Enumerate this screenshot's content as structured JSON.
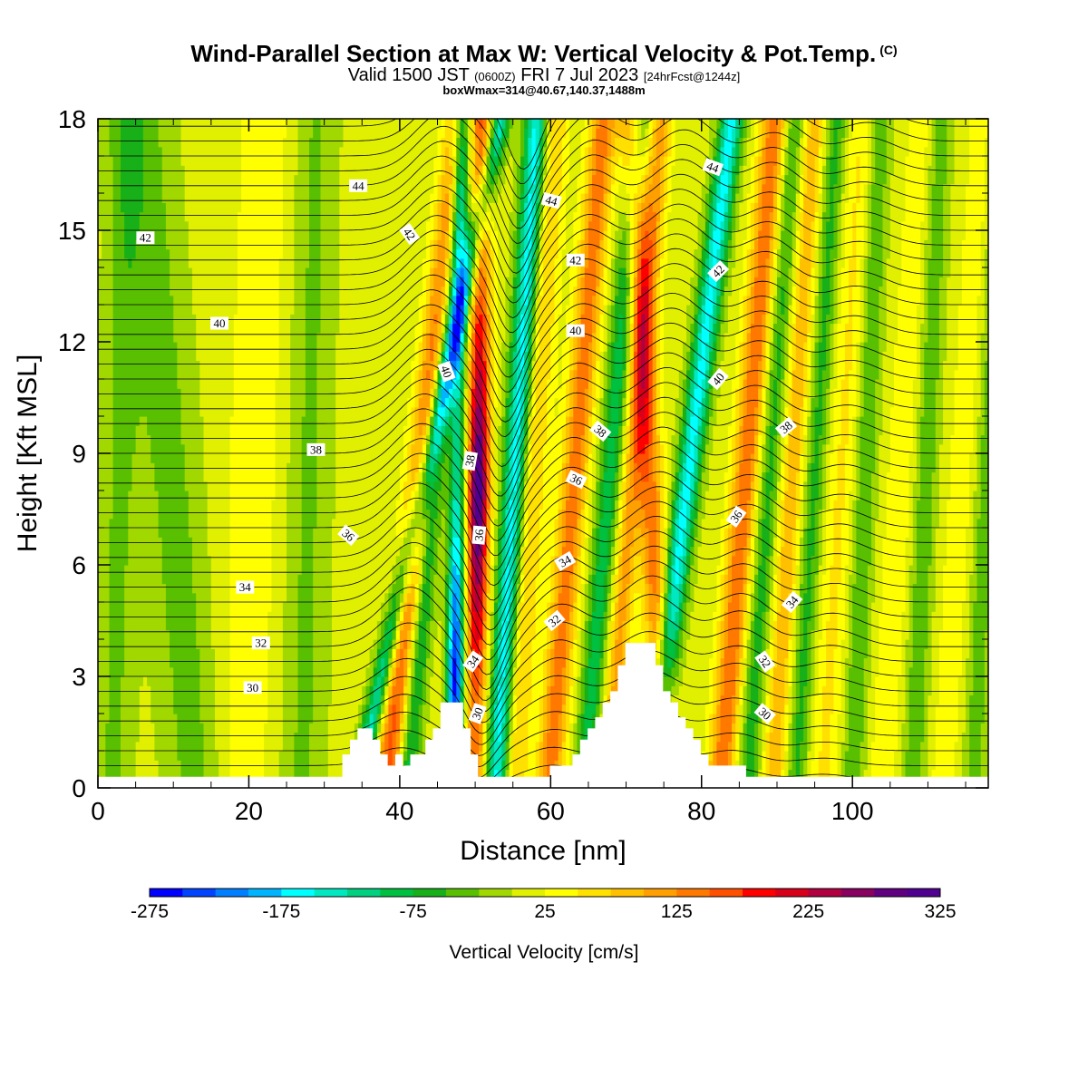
{
  "header": {
    "title": "Wind-Parallel Section at Max W: Vertical Velocity & Pot.Temp.",
    "copyright": "(C)",
    "valid_prefix": "Valid 1500 JST",
    "valid_utc": "(0600Z)",
    "valid_date": "FRI 7 Jul 2023",
    "forecast": "[24hrFcst@1244z]",
    "box_info": "boxWmax=314@40.67,140.37,1488m"
  },
  "chart_data": {
    "type": "heatmap",
    "xlabel": "Distance [nm]",
    "ylabel": "Height [Kft MSL]",
    "xlim": [
      0,
      118
    ],
    "ylim": [
      0,
      18
    ],
    "x_ticks": [
      "0",
      "20",
      "40",
      "60",
      "80",
      "100"
    ],
    "y_ticks": [
      "0",
      "3",
      "6",
      "9",
      "12",
      "15",
      "18"
    ],
    "colorbar": {
      "title": "Vertical Velocity [cm/s]",
      "min": -275,
      "max": 325,
      "step": 25,
      "tick_labels": [
        "-275",
        "-175",
        "-75",
        "25",
        "125",
        "225",
        "325"
      ],
      "colors": [
        "#0000ff",
        "#0044ff",
        "#0080ff",
        "#00b4ff",
        "#00ffff",
        "#00e8c0",
        "#00d080",
        "#00c040",
        "#18b018",
        "#58c000",
        "#a0d800",
        "#e0f000",
        "#ffff00",
        "#ffe000",
        "#ffc000",
        "#ffa000",
        "#ff7800",
        "#ff5000",
        "#ff0000",
        "#d80018",
        "#b00040",
        "#880060",
        "#600080",
        "#500090"
      ]
    },
    "terrain_kft": [
      [
        0,
        0.3
      ],
      [
        32.4,
        0.3
      ],
      [
        32.4,
        0.9
      ],
      [
        33.4,
        0.9
      ],
      [
        33.4,
        1.3
      ],
      [
        34.4,
        1.3
      ],
      [
        34.4,
        1.6
      ],
      [
        36.4,
        1.6
      ],
      [
        36.4,
        1.3
      ],
      [
        37.4,
        1.3
      ],
      [
        37.4,
        0.9
      ],
      [
        38.4,
        0.9
      ],
      [
        38.4,
        0.6
      ],
      [
        39.4,
        0.6
      ],
      [
        39.4,
        0.9
      ],
      [
        40.4,
        0.9
      ],
      [
        40.4,
        0.6
      ],
      [
        41.4,
        0.6
      ],
      [
        41.4,
        0.9
      ],
      [
        43.4,
        0.9
      ],
      [
        43.4,
        1.3
      ],
      [
        44.4,
        1.3
      ],
      [
        44.4,
        1.6
      ],
      [
        45.4,
        1.6
      ],
      [
        45.4,
        2.3
      ],
      [
        48.4,
        2.3
      ],
      [
        48.4,
        1.6
      ],
      [
        49.4,
        1.6
      ],
      [
        49.4,
        0.9
      ],
      [
        50.4,
        0.9
      ],
      [
        50.4,
        0.3
      ],
      [
        59.9,
        0.3
      ],
      [
        59.9,
        0.6
      ],
      [
        62.9,
        0.6
      ],
      [
        62.9,
        0.9
      ],
      [
        63.9,
        0.9
      ],
      [
        63.9,
        1.3
      ],
      [
        64.9,
        1.3
      ],
      [
        64.9,
        1.6
      ],
      [
        65.9,
        1.6
      ],
      [
        65.9,
        1.9
      ],
      [
        66.9,
        1.9
      ],
      [
        66.9,
        2.3
      ],
      [
        67.9,
        2.3
      ],
      [
        67.9,
        2.6
      ],
      [
        68.9,
        2.6
      ],
      [
        68.9,
        3.3
      ],
      [
        69.9,
        3.3
      ],
      [
        69.9,
        3.9
      ],
      [
        73.9,
        3.9
      ],
      [
        73.9,
        3.3
      ],
      [
        74.9,
        3.3
      ],
      [
        74.9,
        2.6
      ],
      [
        75.9,
        2.6
      ],
      [
        75.9,
        2.3
      ],
      [
        76.9,
        2.3
      ],
      [
        76.9,
        1.9
      ],
      [
        77.9,
        1.9
      ],
      [
        77.9,
        1.6
      ],
      [
        78.9,
        1.6
      ],
      [
        78.9,
        1.3
      ],
      [
        79.9,
        1.3
      ],
      [
        79.9,
        0.9
      ],
      [
        80.9,
        0.9
      ],
      [
        80.9,
        0.6
      ],
      [
        85.9,
        0.6
      ],
      [
        85.9,
        0.3
      ],
      [
        118,
        0.3
      ]
    ],
    "contour_labels": [
      {
        "text": "44",
        "x": 34.5,
        "y": 16.2,
        "angle": 0
      },
      {
        "text": "42",
        "x": 41.3,
        "y": 14.9,
        "angle": 55
      },
      {
        "text": "40",
        "x": 46.2,
        "y": 11.2,
        "angle": 70
      },
      {
        "text": "38",
        "x": 49.3,
        "y": 8.8,
        "angle": -80
      },
      {
        "text": "36",
        "x": 50.5,
        "y": 6.8,
        "angle": -85
      },
      {
        "text": "34",
        "x": 49.7,
        "y": 3.4,
        "angle": -55
      },
      {
        "text": "30",
        "x": 50.3,
        "y": 2.0,
        "angle": -70
      },
      {
        "text": "44",
        "x": 60.1,
        "y": 15.8,
        "angle": 15
      },
      {
        "text": "42",
        "x": 63.3,
        "y": 14.2,
        "angle": 0
      },
      {
        "text": "40",
        "x": 63.3,
        "y": 12.3,
        "angle": 0
      },
      {
        "text": "38",
        "x": 66.6,
        "y": 9.6,
        "angle": 40
      },
      {
        "text": "36",
        "x": 63.4,
        "y": 8.3,
        "angle": 25
      },
      {
        "text": "34",
        "x": 61.9,
        "y": 6.1,
        "angle": -30
      },
      {
        "text": "32",
        "x": 60.5,
        "y": 4.5,
        "angle": -40
      },
      {
        "text": "44",
        "x": 81.5,
        "y": 16.7,
        "angle": 20
      },
      {
        "text": "42",
        "x": 82.2,
        "y": 13.9,
        "angle": -45
      },
      {
        "text": "40",
        "x": 82.2,
        "y": 11.0,
        "angle": -50
      },
      {
        "text": "38",
        "x": 91.2,
        "y": 9.7,
        "angle": -40
      },
      {
        "text": "36",
        "x": 84.6,
        "y": 7.3,
        "angle": -55
      },
      {
        "text": "34",
        "x": 92.0,
        "y": 5.0,
        "angle": -50
      },
      {
        "text": "32",
        "x": 88.4,
        "y": 3.4,
        "angle": 55
      },
      {
        "text": "30",
        "x": 88.4,
        "y": 2.0,
        "angle": 40
      },
      {
        "text": "42",
        "x": 6.3,
        "y": 14.8,
        "angle": 0
      },
      {
        "text": "40",
        "x": 16.1,
        "y": 12.5,
        "angle": 0
      },
      {
        "text": "38",
        "x": 28.9,
        "y": 9.1,
        "angle": 0
      },
      {
        "text": "36",
        "x": 33.2,
        "y": 6.8,
        "angle": 40
      },
      {
        "text": "34",
        "x": 19.5,
        "y": 5.4,
        "angle": 0
      },
      {
        "text": "32",
        "x": 21.6,
        "y": 3.9,
        "angle": 0
      },
      {
        "text": "30",
        "x": 20.5,
        "y": 2.7,
        "angle": 0
      }
    ],
    "grid": false
  }
}
